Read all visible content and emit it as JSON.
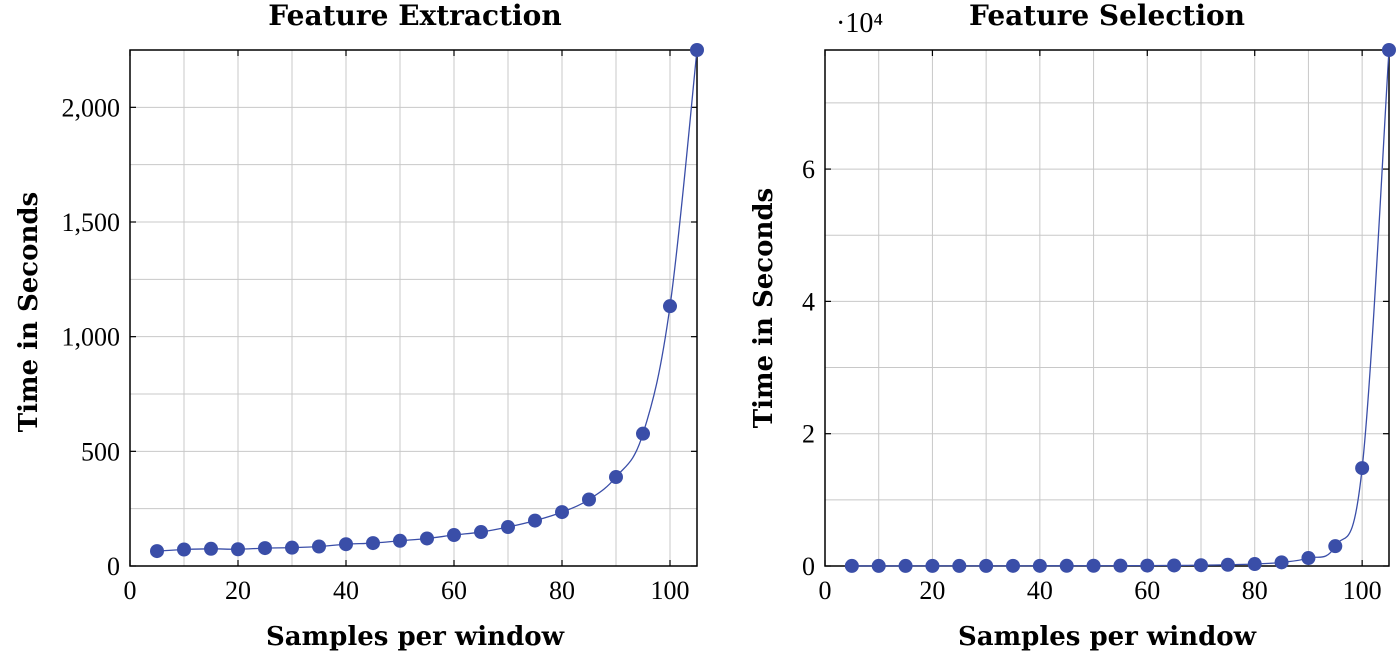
{
  "colors": {
    "series": "#3a4ea8",
    "grid": "#c8c8c8"
  },
  "chart_data": [
    {
      "type": "line",
      "title": "Feature Extraction",
      "xlabel": "Samples per window",
      "ylabel": "Time in Seconds",
      "xlim": [
        0,
        105
      ],
      "ylim": [
        0,
        2250
      ],
      "xticks": [
        0,
        20,
        40,
        60,
        80,
        100
      ],
      "xtick_labels": [
        "0",
        "20",
        "40",
        "60",
        "80",
        "100"
      ],
      "yticks": [
        0,
        500,
        1000,
        1500,
        2000
      ],
      "ytick_labels": [
        "0",
        "500",
        "1,000",
        "1,500",
        "2,000"
      ],
      "xgrid": [
        0,
        10,
        20,
        30,
        40,
        50,
        60,
        70,
        80,
        90,
        100
      ],
      "ygrid": [
        0,
        250,
        500,
        750,
        1000,
        1250,
        1500,
        1750,
        2000,
        2250
      ],
      "grid": true,
      "exponent_label": "",
      "series": [
        {
          "name": "Feature Extraction",
          "x": [
            5,
            10,
            15,
            20,
            25,
            30,
            35,
            40,
            45,
            50,
            55,
            60,
            65,
            70,
            75,
            80,
            85,
            90,
            95,
            100,
            105
          ],
          "values": [
            65,
            72,
            75,
            73,
            78,
            80,
            85,
            95,
            100,
            110,
            120,
            135,
            148,
            170,
            198,
            235,
            290,
            388,
            577,
            1133,
            2250
          ]
        }
      ]
    },
    {
      "type": "line",
      "title": "Feature Selection",
      "xlabel": "Samples per window",
      "ylabel": "Time in Seconds",
      "xlim": [
        0,
        105
      ],
      "ylim": [
        0,
        78000
      ],
      "xticks": [
        0,
        20,
        40,
        60,
        80,
        100
      ],
      "xtick_labels": [
        "0",
        "20",
        "40",
        "60",
        "80",
        "100"
      ],
      "yticks": [
        0,
        20000,
        40000,
        60000
      ],
      "ytick_labels": [
        "0",
        "2",
        "4",
        "6"
      ],
      "xgrid": [
        0,
        10,
        20,
        30,
        40,
        50,
        60,
        70,
        80,
        90,
        100
      ],
      "ygrid": [
        0,
        10000,
        20000,
        30000,
        40000,
        50000,
        60000,
        70000
      ],
      "grid": true,
      "exponent_label": "·10⁴",
      "series": [
        {
          "name": "Feature Selection",
          "x": [
            5,
            10,
            15,
            20,
            25,
            30,
            35,
            40,
            45,
            50,
            55,
            60,
            65,
            70,
            75,
            80,
            85,
            90,
            95,
            100,
            105
          ],
          "values": [
            10,
            12,
            14,
            15,
            17,
            19,
            22,
            25,
            30,
            38,
            48,
            62,
            85,
            120,
            180,
            300,
            550,
            1200,
            3000,
            14800,
            78000
          ]
        }
      ]
    }
  ]
}
